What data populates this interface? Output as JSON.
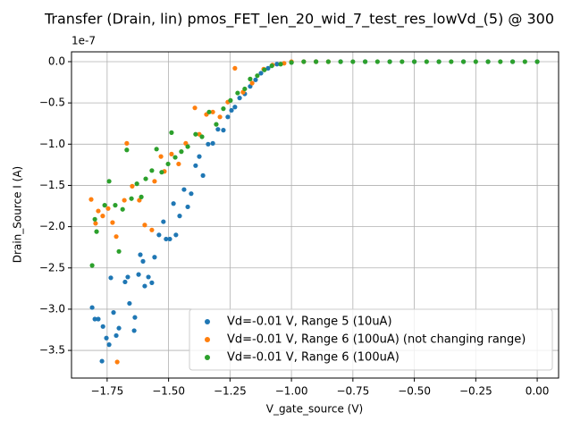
{
  "chart_data": {
    "type": "scatter",
    "title": "Transfer (Drain, lin) pmos_FET_len_20_wid_7_test_res_lowVd_(5) @ 300",
    "x_label": "V_gate_source (V)",
    "y_label": "Drain_Source I (A)",
    "y_offset_label": "1e-7",
    "xlim": [
      -1.895,
      0.087
    ],
    "ylim": [
      -3.835,
      0.119
    ],
    "xticks": [
      {
        "value": -1.75,
        "label": "−1.75"
      },
      {
        "value": -1.5,
        "label": "−1.50"
      },
      {
        "value": -1.25,
        "label": "−1.25"
      },
      {
        "value": -1.0,
        "label": "−1.00"
      },
      {
        "value": -0.75,
        "label": "−0.75"
      },
      {
        "value": -0.5,
        "label": "−0.50"
      },
      {
        "value": -0.25,
        "label": "−0.25"
      },
      {
        "value": 0,
        "label": "0.00"
      }
    ],
    "yticks": [
      {
        "value": 0,
        "label": "0.0"
      },
      {
        "value": -0.5,
        "label": "−0.5"
      },
      {
        "value": -1.0,
        "label": "−1.0"
      },
      {
        "value": -1.5,
        "label": "−1.5"
      },
      {
        "value": -2.0,
        "label": "−2.0"
      },
      {
        "value": -2.5,
        "label": "−2.5"
      },
      {
        "value": -3.0,
        "label": "−3.0"
      },
      {
        "value": -3.5,
        "label": "−3.5"
      }
    ],
    "grid": true,
    "legend_position": "lower right",
    "series": [
      {
        "name": "Vd=-0.01 V, Range 5 (10uA)",
        "color": "#1f77b4",
        "x": [
          -1.811,
          -1.8,
          -1.786,
          -1.767,
          -1.753,
          -1.742,
          -1.771,
          -1.735,
          -1.724,
          -1.713,
          -1.702,
          -1.677,
          -1.666,
          -1.659,
          -1.64,
          -1.637,
          -1.622,
          -1.615,
          -1.604,
          -1.597,
          -1.582,
          -1.568,
          -1.557,
          -1.539,
          -1.521,
          -1.51,
          -1.495,
          -1.48,
          -1.47,
          -1.455,
          -1.437,
          -1.422,
          -1.408,
          -1.39,
          -1.375,
          -1.36,
          -1.339,
          -1.32,
          -1.299,
          -1.277,
          -1.259,
          -1.244,
          -1.23,
          -1.211,
          -1.19,
          -1.168,
          -1.146,
          -1.124,
          -1.095,
          -1.059,
          -1.0,
          -0.9,
          -0.8,
          -0.7,
          -0.6,
          -0.5,
          -0.4,
          -0.3,
          -0.2,
          -0.1,
          0.0
        ],
        "values": [
          -2.98,
          -3.12,
          -3.12,
          -3.21,
          -3.35,
          -3.43,
          -3.63,
          -2.62,
          -3.04,
          -3.32,
          -3.23,
          -2.67,
          -2.61,
          -2.93,
          -3.26,
          -3.1,
          -2.58,
          -2.34,
          -2.42,
          -2.72,
          -2.61,
          -2.68,
          -2.37,
          -2.1,
          -1.94,
          -2.15,
          -2.15,
          -1.72,
          -2.1,
          -1.87,
          -1.55,
          -1.76,
          -1.6,
          -1.26,
          -1.15,
          -1.38,
          -1.0,
          -0.99,
          -0.82,
          -0.83,
          -0.67,
          -0.59,
          -0.55,
          -0.44,
          -0.39,
          -0.3,
          -0.22,
          -0.14,
          -0.08,
          -0.03,
          -0.01,
          0,
          0,
          0,
          0,
          0,
          0,
          0,
          0,
          0,
          0
        ]
      },
      {
        "name": "Vd=-0.01 V, Range 6 (100uA) (not changing range)",
        "color": "#ff7f0e",
        "x": [
          -1.815,
          -1.797,
          -1.786,
          -1.768,
          -1.746,
          -1.728,
          -1.713,
          -1.709,
          -1.68,
          -1.67,
          -1.648,
          -1.619,
          -1.597,
          -1.568,
          -1.557,
          -1.531,
          -1.517,
          -1.488,
          -1.459,
          -1.43,
          -1.393,
          -1.375,
          -1.346,
          -1.32,
          -1.291,
          -1.259,
          -1.23,
          -1.197,
          -1.16,
          -1.113,
          -1.077,
          -1.03,
          -1.0,
          -0.95,
          -0.9,
          -0.85
        ],
        "values": [
          -1.67,
          -1.96,
          -1.81,
          -1.87,
          -1.78,
          -1.95,
          -2.12,
          -3.64,
          -1.68,
          -0.99,
          -1.51,
          -1.68,
          -1.98,
          -2.04,
          -1.45,
          -1.15,
          -1.33,
          -1.12,
          -1.24,
          -0.99,
          -0.56,
          -0.88,
          -0.64,
          -0.61,
          -0.67,
          -0.49,
          -0.08,
          -0.37,
          -0.26,
          -0.09,
          -0.04,
          -0.02,
          0,
          0,
          0,
          0
        ]
      },
      {
        "name": "Vd=-0.01 V, Range 6 (100uA)",
        "color": "#2ca02c",
        "x": [
          -1.811,
          -1.8,
          -1.793,
          -1.76,
          -1.742,
          -1.717,
          -1.702,
          -1.687,
          -1.67,
          -1.651,
          -1.629,
          -1.611,
          -1.593,
          -1.568,
          -1.549,
          -1.528,
          -1.502,
          -1.488,
          -1.473,
          -1.448,
          -1.422,
          -1.39,
          -1.364,
          -1.335,
          -1.306,
          -1.277,
          -1.248,
          -1.219,
          -1.19,
          -1.168,
          -1.139,
          -1.11,
          -1.08,
          -1.044,
          -1.0,
          -0.95,
          -0.9,
          -0.85,
          -0.8,
          -0.75,
          -0.7,
          -0.65,
          -0.6,
          -0.55,
          -0.5,
          -0.45,
          -0.4,
          -0.35,
          -0.3,
          -0.25,
          -0.2,
          -0.15,
          -0.1,
          -0.05,
          0.0
        ],
        "values": [
          -2.47,
          -1.91,
          -2.06,
          -1.74,
          -1.45,
          -1.74,
          -2.3,
          -1.79,
          -1.07,
          -1.66,
          -1.48,
          -1.64,
          -1.42,
          -1.32,
          -1.06,
          -1.34,
          -1.24,
          -0.86,
          -1.16,
          -1.09,
          -1.03,
          -0.88,
          -0.91,
          -0.61,
          -0.76,
          -0.57,
          -0.47,
          -0.38,
          -0.33,
          -0.21,
          -0.17,
          -0.1,
          -0.05,
          -0.03,
          -0.01,
          0,
          0,
          0,
          0,
          0,
          0,
          0,
          0,
          0,
          0,
          0,
          0,
          0,
          0,
          0,
          0,
          0,
          0,
          0,
          0
        ]
      }
    ]
  }
}
